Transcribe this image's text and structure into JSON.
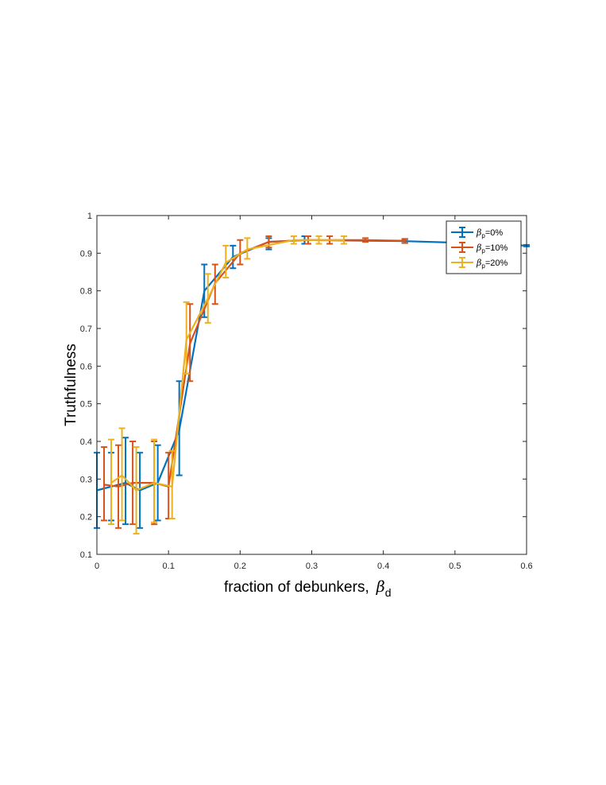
{
  "chart_data": {
    "type": "line",
    "xlabel": "fraction of debunkers,",
    "xlabel_symbol": "β",
    "xlabel_subscript": "d",
    "ylabel": "Truthfulness",
    "xlim": [
      0,
      0.6
    ],
    "ylim": [
      0.1,
      1
    ],
    "xticks": [
      0,
      0.1,
      0.2,
      0.3,
      0.4,
      0.5,
      0.6
    ],
    "xtick_labels": [
      "0",
      "0.1",
      "0.2",
      "0.3",
      "0.4",
      "0.5",
      "0.6"
    ],
    "yticks": [
      0.1,
      0.2,
      0.3,
      0.4,
      0.5,
      0.6,
      0.7,
      0.8,
      0.9,
      1
    ],
    "ytick_labels": [
      "0.1",
      "0.2",
      "0.3",
      "0.4",
      "0.5",
      "0.6",
      "0.7",
      "0.8",
      "0.9",
      "1"
    ],
    "grid": false,
    "legend_position": "top-right",
    "series": [
      {
        "name": "β_p=0%",
        "legend_symbol": "β",
        "legend_subscript": "p",
        "legend_suffix": "=0%",
        "color": "#0072BD",
        "points": [
          {
            "x": 0.0,
            "y": 0.27,
            "lo": 0.17,
            "hi": 0.37
          },
          {
            "x": 0.02,
            "y": 0.28,
            "lo": 0.19,
            "hi": 0.37
          },
          {
            "x": 0.04,
            "y": 0.29,
            "lo": 0.18,
            "hi": 0.41
          },
          {
            "x": 0.06,
            "y": 0.27,
            "lo": 0.17,
            "hi": 0.37
          },
          {
            "x": 0.085,
            "y": 0.29,
            "lo": 0.19,
            "hi": 0.39
          },
          {
            "x": 0.115,
            "y": 0.43,
            "lo": 0.31,
            "hi": 0.56
          },
          {
            "x": 0.15,
            "y": 0.8,
            "lo": 0.73,
            "hi": 0.87
          },
          {
            "x": 0.19,
            "y": 0.89,
            "lo": 0.86,
            "hi": 0.92
          },
          {
            "x": 0.24,
            "y": 0.93,
            "lo": 0.91,
            "hi": 0.94
          },
          {
            "x": 0.29,
            "y": 0.935,
            "lo": 0.925,
            "hi": 0.945
          },
          {
            "x": 0.43,
            "y": 0.932,
            "lo": 0.927,
            "hi": 0.937
          },
          {
            "x": 0.52,
            "y": 0.927,
            "lo": 0.925,
            "hi": 0.929
          },
          {
            "x": 0.6,
            "y": 0.92,
            "lo": 0.918,
            "hi": 0.922
          }
        ]
      },
      {
        "name": "β_p=10%",
        "legend_symbol": "β",
        "legend_subscript": "p",
        "legend_suffix": "=10%",
        "color": "#D95319",
        "points": [
          {
            "x": 0.01,
            "y": 0.285,
            "lo": 0.19,
            "hi": 0.385
          },
          {
            "x": 0.03,
            "y": 0.28,
            "lo": 0.17,
            "hi": 0.39
          },
          {
            "x": 0.05,
            "y": 0.29,
            "lo": 0.18,
            "hi": 0.4
          },
          {
            "x": 0.08,
            "y": 0.29,
            "lo": 0.18,
            "hi": 0.4
          },
          {
            "x": 0.1,
            "y": 0.28,
            "lo": 0.195,
            "hi": 0.37
          },
          {
            "x": 0.13,
            "y": 0.66,
            "lo": 0.56,
            "hi": 0.765
          },
          {
            "x": 0.165,
            "y": 0.82,
            "lo": 0.765,
            "hi": 0.87
          },
          {
            "x": 0.2,
            "y": 0.9,
            "lo": 0.87,
            "hi": 0.935
          },
          {
            "x": 0.24,
            "y": 0.93,
            "lo": 0.915,
            "hi": 0.945
          },
          {
            "x": 0.295,
            "y": 0.935,
            "lo": 0.925,
            "hi": 0.945
          },
          {
            "x": 0.325,
            "y": 0.935,
            "lo": 0.925,
            "hi": 0.945
          },
          {
            "x": 0.375,
            "y": 0.935,
            "lo": 0.93,
            "hi": 0.94
          },
          {
            "x": 0.43,
            "y": 0.933,
            "lo": 0.927,
            "hi": 0.938
          }
        ]
      },
      {
        "name": "β_p=20%",
        "legend_symbol": "β",
        "legend_subscript": "p",
        "legend_suffix": "=20%",
        "color": "#EDB120",
        "points": [
          {
            "x": 0.02,
            "y": 0.29,
            "lo": 0.18,
            "hi": 0.405
          },
          {
            "x": 0.035,
            "y": 0.31,
            "lo": 0.19,
            "hi": 0.435
          },
          {
            "x": 0.055,
            "y": 0.27,
            "lo": 0.155,
            "hi": 0.385
          },
          {
            "x": 0.08,
            "y": 0.29,
            "lo": 0.185,
            "hi": 0.405
          },
          {
            "x": 0.105,
            "y": 0.28,
            "lo": 0.195,
            "hi": 0.375
          },
          {
            "x": 0.125,
            "y": 0.67,
            "lo": 0.58,
            "hi": 0.77
          },
          {
            "x": 0.155,
            "y": 0.78,
            "lo": 0.715,
            "hi": 0.845
          },
          {
            "x": 0.18,
            "y": 0.875,
            "lo": 0.835,
            "hi": 0.92
          },
          {
            "x": 0.21,
            "y": 0.91,
            "lo": 0.885,
            "hi": 0.94
          },
          {
            "x": 0.275,
            "y": 0.935,
            "lo": 0.925,
            "hi": 0.945
          },
          {
            "x": 0.31,
            "y": 0.935,
            "lo": 0.925,
            "hi": 0.945
          },
          {
            "x": 0.345,
            "y": 0.935,
            "lo": 0.925,
            "hi": 0.945
          }
        ]
      }
    ]
  }
}
